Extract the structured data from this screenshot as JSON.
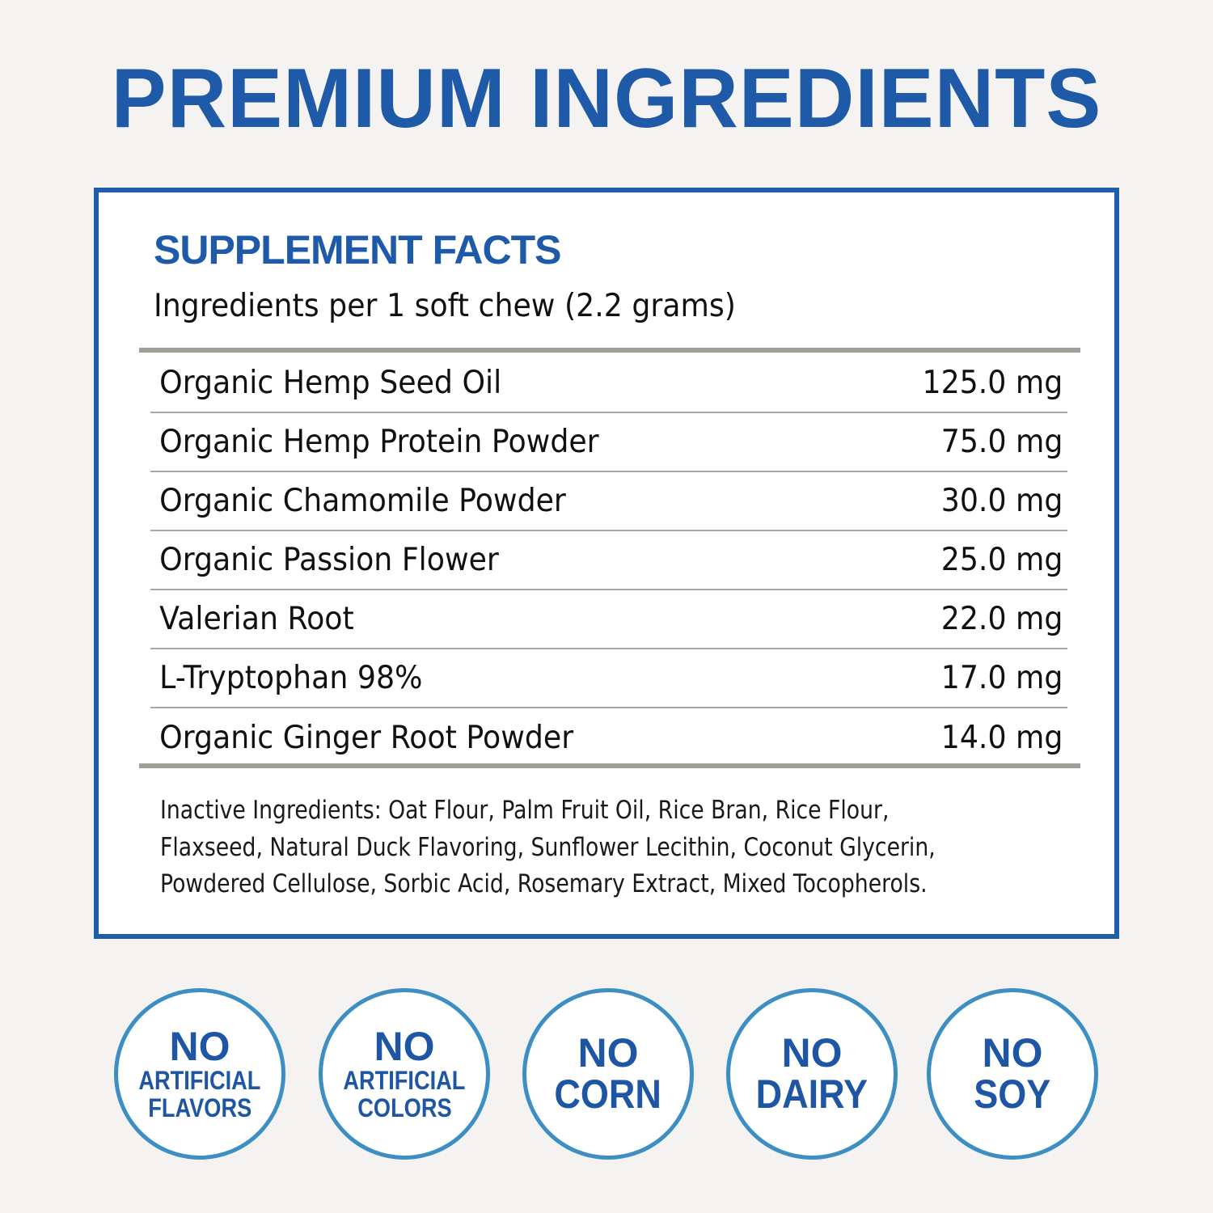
{
  "title": "PREMIUM INGREDIENTS",
  "colors": {
    "brand_blue": "#1e5aa8",
    "badge_ring": "#3d8fc3",
    "rule_gray": "#a09f97",
    "background": "#f4f3f1"
  },
  "facts": {
    "heading": "SUPPLEMENT FACTS",
    "serving": "Ingredients per 1 soft chew (2.2 grams)",
    "rows": [
      {
        "name": "Organic Hemp Seed Oil",
        "amount": "125.0 mg"
      },
      {
        "name": "Organic Hemp Protein Powder",
        "amount": "75.0 mg"
      },
      {
        "name": "Organic Chamomile Powder",
        "amount": "30.0 mg"
      },
      {
        "name": "Organic Passion Flower",
        "amount": "25.0 mg"
      },
      {
        "name": "Valerian Root",
        "amount": "22.0 mg"
      },
      {
        "name": "L-Tryptophan 98%",
        "amount": "17.0 mg"
      },
      {
        "name": "Organic Ginger Root Powder",
        "amount": "14.0 mg"
      }
    ],
    "inactive_lines": [
      "Inactive Ingredients: Oat Flour, Palm Fruit Oil, Rice Bran, Rice Flour,",
      "Flaxseed, Natural Duck Flavoring, Sunflower Lecithin, Coconut Glycerin,",
      "Powdered Cellulose, Sorbic Acid, Rosemary Extract, Mixed Tocopherols."
    ]
  },
  "badges": [
    {
      "no": "NO",
      "line1": "ARTIFICIAL",
      "line2": "FLAVORS"
    },
    {
      "no": "NO",
      "line1": "ARTIFICIAL",
      "line2": "COLORS"
    },
    {
      "no": "NO",
      "line1": "CORN"
    },
    {
      "no": "NO",
      "line1": "DAIRY"
    },
    {
      "no": "NO",
      "line1": "SOY"
    }
  ]
}
